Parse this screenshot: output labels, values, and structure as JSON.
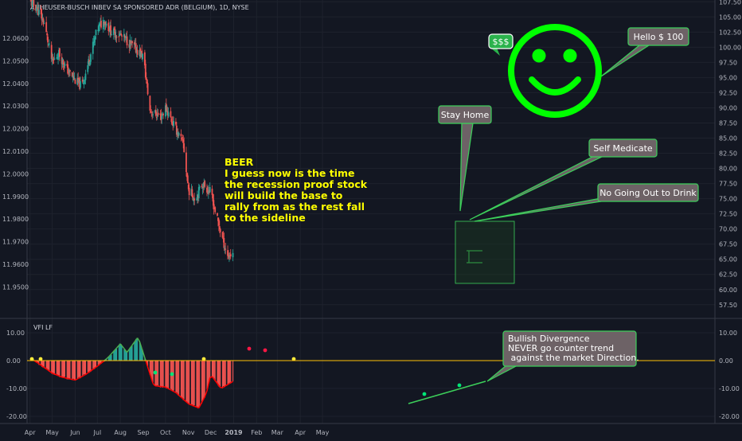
{
  "chart_data": [
    {
      "type": "candlestick",
      "title": "ANHEUSER-BUSCH INBEV SA SPONSORED ADR (BELGIUM), 1D, NYSE",
      "left_axis": {
        "ticks": [
          "12.0600",
          "12.0500",
          "12.0400",
          "12.0300",
          "12.0200",
          "12.0100",
          "12.0000",
          "11.9900",
          "11.9800",
          "11.9700",
          "11.9600",
          "11.9500"
        ]
      },
      "right_axis": {
        "ticks": [
          "107.50",
          "105.00",
          "102.50",
          "100.00",
          "97.50",
          "95.00",
          "92.50",
          "90.00",
          "87.50",
          "85.00",
          "82.50",
          "80.00",
          "77.50",
          "75.00",
          "72.50",
          "70.00",
          "67.50",
          "65.00",
          "62.50",
          "60.00",
          "57.50"
        ],
        "ylim": [
          55.5,
          107.8
        ]
      },
      "x_axis": {
        "labels": [
          "Apr",
          "May",
          "Jun",
          "Jul",
          "Aug",
          "Sep",
          "Oct",
          "Nov",
          "Dec",
          "2019",
          "Feb",
          "Mar",
          "Apr",
          "May"
        ]
      },
      "price_path": [
        {
          "date": "2018-04-01",
          "close": 107.5
        },
        {
          "date": "2018-04-10",
          "close": 106.5
        },
        {
          "date": "2018-04-20",
          "close": 104.0
        },
        {
          "date": "2018-05-01",
          "close": 97.5
        },
        {
          "date": "2018-05-10",
          "close": 99.0
        },
        {
          "date": "2018-05-20",
          "close": 96.5
        },
        {
          "date": "2018-06-01",
          "close": 94.5
        },
        {
          "date": "2018-06-10",
          "close": 93.5
        },
        {
          "date": "2018-06-20",
          "close": 98.0
        },
        {
          "date": "2018-07-01",
          "close": 103.0
        },
        {
          "date": "2018-07-10",
          "close": 104.5
        },
        {
          "date": "2018-07-20",
          "close": 102.5
        },
        {
          "date": "2018-08-01",
          "close": 102.0
        },
        {
          "date": "2018-08-15",
          "close": 100.5
        },
        {
          "date": "2018-09-01",
          "close": 98.5
        },
        {
          "date": "2018-09-10",
          "close": 89.5
        },
        {
          "date": "2018-09-25",
          "close": 88.5
        },
        {
          "date": "2018-10-01",
          "close": 90.0
        },
        {
          "date": "2018-10-15",
          "close": 86.5
        },
        {
          "date": "2018-10-25",
          "close": 84.0
        },
        {
          "date": "2018-11-01",
          "close": 76.5
        },
        {
          "date": "2018-11-10",
          "close": 75.0
        },
        {
          "date": "2018-11-20",
          "close": 77.5
        },
        {
          "date": "2018-12-01",
          "close": 76.0
        },
        {
          "date": "2018-12-10",
          "close": 71.5
        },
        {
          "date": "2018-12-18",
          "close": 68.0
        },
        {
          "date": "2018-12-24",
          "close": 65.5
        },
        {
          "date": "2018-12-31",
          "close": 66.0
        }
      ],
      "annotations": {
        "beer_note": [
          "BEER",
          "I guess now is the time",
          "the recession proof stock",
          "will build the base to",
          "rally from as the rest fall",
          "to the sideline"
        ],
        "callouts": [
          "Hello $ 100",
          "Stay Home",
          "Self Medicate",
          "No Going Out to Drink"
        ],
        "small_bubble": "$$$",
        "icon": "smiley-face-icon",
        "highlight_box": "bottom-right of price",
        "colors": {
          "up": "#26a69a",
          "down": "#ef5350",
          "callout_border": "#3cd05a",
          "smiley": "#00ff00",
          "note": "#ffff00"
        }
      }
    },
    {
      "type": "histogram",
      "title": "VFI LF",
      "ticks": [
        "10.00",
        "0.00",
        "-10.00",
        "-20.00"
      ],
      "ylim": [
        -22,
        14
      ],
      "vfi_path": [
        {
          "date": "2018-04-01",
          "value": 1.0
        },
        {
          "date": "2018-04-15",
          "value": -1.5
        },
        {
          "date": "2018-05-01",
          "value": -4.5
        },
        {
          "date": "2018-05-15",
          "value": -6.0
        },
        {
          "date": "2018-06-01",
          "value": -7.0
        },
        {
          "date": "2018-06-15",
          "value": -5.0
        },
        {
          "date": "2018-07-01",
          "value": -2.0
        },
        {
          "date": "2018-07-15",
          "value": 1.0
        },
        {
          "date": "2018-08-01",
          "value": 6.0
        },
        {
          "date": "2018-08-10",
          "value": 3.0
        },
        {
          "date": "2018-08-25",
          "value": 8.5
        },
        {
          "date": "2018-09-03",
          "value": 1.0
        },
        {
          "date": "2018-09-15",
          "value": -9.0
        },
        {
          "date": "2018-10-01",
          "value": -9.5
        },
        {
          "date": "2018-10-15",
          "value": -11.5
        },
        {
          "date": "2018-11-01",
          "value": -15.5
        },
        {
          "date": "2018-11-15",
          "value": -17.0
        },
        {
          "date": "2018-11-25",
          "value": -12.0
        },
        {
          "date": "2018-12-01",
          "value": -5.0
        },
        {
          "date": "2018-12-15",
          "value": -10.0
        },
        {
          "date": "2018-12-31",
          "value": -7.5
        }
      ],
      "divergence_note": [
        "Bullish Divergence",
        "NEVER go counter trend",
        " against the market Direction."
      ],
      "colors": {
        "positive": "#26a69a",
        "negative": "#ef5350",
        "line_up": "#4caf50",
        "line_down": "#ff0000",
        "zero_line": "#ffc107"
      }
    }
  ]
}
